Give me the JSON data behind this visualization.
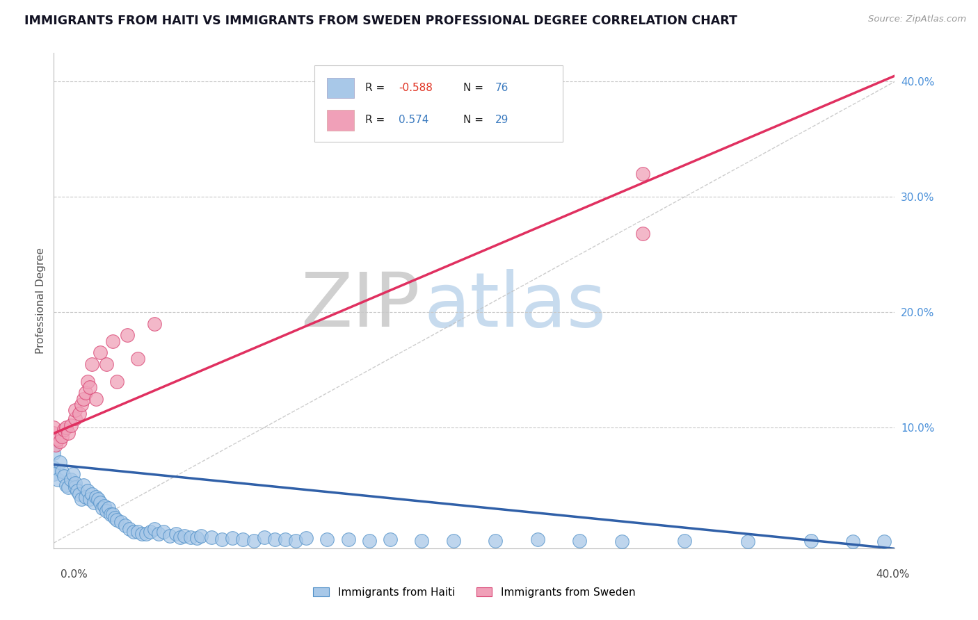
{
  "title": "IMMIGRANTS FROM HAITI VS IMMIGRANTS FROM SWEDEN PROFESSIONAL DEGREE CORRELATION CHART",
  "source": "Source: ZipAtlas.com",
  "ylabel": "Professional Degree",
  "xlim": [
    0.0,
    0.4
  ],
  "ylim": [
    -0.005,
    0.425
  ],
  "haiti_face_color": "#a8c8e8",
  "haiti_edge_color": "#5090c8",
  "sweden_face_color": "#f0a0b8",
  "sweden_edge_color": "#d84070",
  "haiti_line_color": "#3060a8",
  "sweden_line_color": "#e03060",
  "grid_color": "#c8c8c8",
  "ref_line_color": "#c0c0c0",
  "R_haiti": -0.588,
  "N_haiti": 76,
  "R_sweden": 0.574,
  "N_sweden": 29,
  "legend_label_haiti": "Immigrants from Haiti",
  "legend_label_sweden": "Immigrants from Sweden",
  "haiti_scatter_x": [
    0.0,
    0.0,
    0.0,
    0.002,
    0.003,
    0.004,
    0.005,
    0.006,
    0.007,
    0.008,
    0.009,
    0.01,
    0.01,
    0.011,
    0.012,
    0.013,
    0.014,
    0.015,
    0.016,
    0.017,
    0.018,
    0.019,
    0.02,
    0.021,
    0.022,
    0.023,
    0.024,
    0.025,
    0.026,
    0.027,
    0.028,
    0.029,
    0.03,
    0.032,
    0.034,
    0.036,
    0.038,
    0.04,
    0.042,
    0.044,
    0.046,
    0.048,
    0.05,
    0.052,
    0.055,
    0.058,
    0.06,
    0.062,
    0.065,
    0.068,
    0.07,
    0.075,
    0.08,
    0.085,
    0.09,
    0.095,
    0.1,
    0.105,
    0.11,
    0.115,
    0.12,
    0.13,
    0.14,
    0.15,
    0.16,
    0.175,
    0.19,
    0.21,
    0.23,
    0.25,
    0.27,
    0.3,
    0.33,
    0.36,
    0.38,
    0.395
  ],
  "haiti_scatter_y": [
    0.078,
    0.065,
    0.06,
    0.055,
    0.07,
    0.062,
    0.058,
    0.05,
    0.048,
    0.055,
    0.06,
    0.048,
    0.052,
    0.045,
    0.042,
    0.038,
    0.05,
    0.04,
    0.045,
    0.038,
    0.042,
    0.035,
    0.04,
    0.038,
    0.035,
    0.03,
    0.032,
    0.028,
    0.03,
    0.025,
    0.025,
    0.022,
    0.02,
    0.018,
    0.015,
    0.012,
    0.01,
    0.01,
    0.008,
    0.008,
    0.01,
    0.012,
    0.008,
    0.01,
    0.006,
    0.008,
    0.005,
    0.006,
    0.005,
    0.004,
    0.006,
    0.005,
    0.003,
    0.004,
    0.003,
    0.002,
    0.005,
    0.003,
    0.003,
    0.002,
    0.004,
    0.003,
    0.003,
    0.002,
    0.003,
    0.002,
    0.002,
    0.002,
    0.003,
    0.002,
    0.001,
    0.002,
    0.001,
    0.002,
    0.001,
    0.001
  ],
  "sweden_scatter_x": [
    0.0,
    0.0,
    0.001,
    0.002,
    0.003,
    0.004,
    0.005,
    0.006,
    0.007,
    0.008,
    0.01,
    0.01,
    0.012,
    0.013,
    0.014,
    0.015,
    0.016,
    0.017,
    0.018,
    0.02,
    0.022,
    0.025,
    0.028,
    0.03,
    0.035,
    0.04,
    0.048,
    0.28,
    0.28
  ],
  "sweden_scatter_y": [
    0.095,
    0.1,
    0.085,
    0.09,
    0.088,
    0.092,
    0.098,
    0.1,
    0.095,
    0.102,
    0.108,
    0.115,
    0.112,
    0.12,
    0.125,
    0.13,
    0.14,
    0.135,
    0.155,
    0.125,
    0.165,
    0.155,
    0.175,
    0.14,
    0.18,
    0.16,
    0.19,
    0.32,
    0.268
  ],
  "haiti_trend_x": [
    0.0,
    0.4
  ],
  "haiti_trend_y": [
    0.068,
    -0.005
  ],
  "sweden_trend_x": [
    0.0,
    0.4
  ],
  "sweden_trend_y": [
    0.095,
    0.405
  ],
  "ref_line_x": [
    0.0,
    0.4
  ],
  "ref_line_y": [
    0.0,
    0.4
  ],
  "yticks": [
    0.1,
    0.2,
    0.3,
    0.4
  ],
  "ytick_labels": [
    "10.0%",
    "20.0%",
    "30.0%",
    "40.0%"
  ]
}
